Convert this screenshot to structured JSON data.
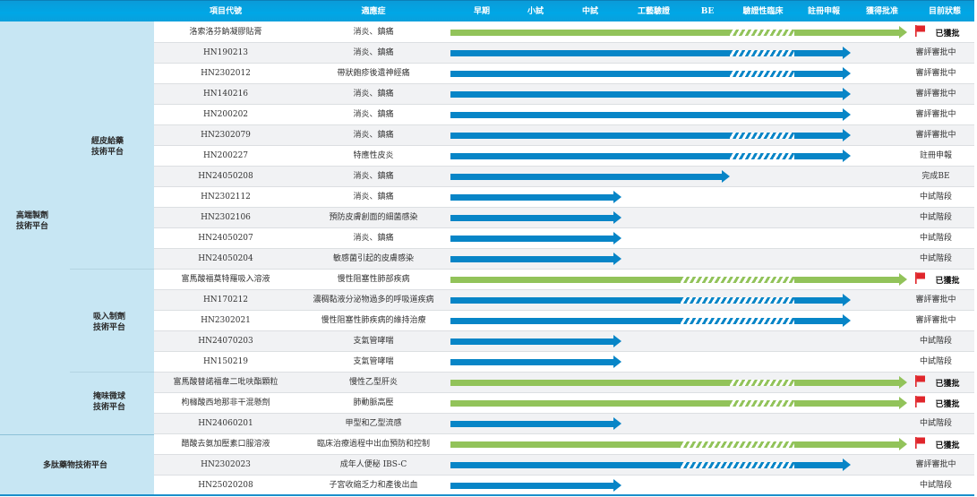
{
  "header": {
    "columns": [
      "項目代號",
      "適應症",
      "早期",
      "小試",
      "中試",
      "工藝驗證",
      "BE",
      "驗證性臨床",
      "註冊申報",
      "獲得批准",
      "目前狀態"
    ]
  },
  "colors": {
    "blue": "#0785c7",
    "green": "#92c35a",
    "header": "#00a7e6",
    "flag_red": "#e0262b",
    "left_panel": "#c7e6f3"
  },
  "platforms": [
    {
      "name": "高端製劑\n技術平台",
      "line1": "高端製劑",
      "line2": "技術平台"
    },
    {
      "name": "多肽藥物技術平台",
      "line1": "多肽藥物技術平台"
    }
  ],
  "sub_platforms": [
    {
      "line1": "經皮給藥",
      "line2": "技術平台"
    },
    {
      "line1": "吸入制劑",
      "line2": "技術平台"
    },
    {
      "line1": "掩味微球",
      "line2": "技術平台"
    }
  ],
  "rows": [
    {
      "code": "洛索洛芬鈉凝膠貼膏",
      "indication": "消炎、鎮痛",
      "status": "已獲批",
      "color": "green",
      "solid_end": 815,
      "hatch_end": 887,
      "end": 1013,
      "approved": true
    },
    {
      "code": "HN190213",
      "indication": "消炎、鎮痛",
      "status": "審評審批中",
      "color": "blue",
      "solid_end": 815,
      "hatch_end": 887,
      "end": 950,
      "approved": false
    },
    {
      "code": "HN2302012",
      "indication": "帶狀皰疹後遺神經痛",
      "status": "審評審批中",
      "color": "blue",
      "solid_end": 815,
      "hatch_end": 887,
      "end": 950,
      "approved": false
    },
    {
      "code": "HN140216",
      "indication": "消炎、鎮痛",
      "status": "審評審批中",
      "color": "blue",
      "solid_end": 950,
      "hatch_end": 950,
      "end": 950,
      "approved": false
    },
    {
      "code": "HN200202",
      "indication": "消炎、鎮痛",
      "status": "審評審批中",
      "color": "blue",
      "solid_end": 950,
      "hatch_end": 950,
      "end": 950,
      "approved": false
    },
    {
      "code": "HN2302079",
      "indication": "消炎、鎮痛",
      "status": "審評審批中",
      "color": "blue",
      "solid_end": 815,
      "hatch_end": 887,
      "end": 950,
      "approved": false
    },
    {
      "code": "HN200227",
      "indication": "特應性皮炎",
      "status": "註冊申報",
      "color": "blue",
      "solid_end": 815,
      "hatch_end": 887,
      "end": 950,
      "approved": false
    },
    {
      "code": "HN24050208",
      "indication": "消炎、鎮痛",
      "status": "完成BE",
      "color": "blue",
      "solid_end": 815,
      "hatch_end": 815,
      "end": 815,
      "approved": false
    },
    {
      "code": "HN2302112",
      "indication": "消炎、鎮痛",
      "status": "中試階段",
      "color": "blue",
      "solid_end": 694,
      "hatch_end": 694,
      "end": 694,
      "approved": false
    },
    {
      "code": "HN2302106",
      "indication": "預防皮膚創面的細菌感染",
      "status": "中試階段",
      "color": "blue",
      "solid_end": 694,
      "hatch_end": 694,
      "end": 694,
      "approved": false
    },
    {
      "code": "HN24050207",
      "indication": "消炎、鎮痛",
      "status": "中試階段",
      "color": "blue",
      "solid_end": 694,
      "hatch_end": 694,
      "end": 694,
      "approved": false
    },
    {
      "code": "HN24050204",
      "indication": "敏感菌引起的皮膚感染",
      "status": "中試階段",
      "color": "blue",
      "solid_end": 694,
      "hatch_end": 694,
      "end": 694,
      "approved": false
    },
    {
      "code": "富馬酸福莫特羅吸入溶液",
      "indication": "慢性阻塞性肺部疾病",
      "status": "已獲批",
      "color": "green",
      "solid_end": 760,
      "hatch_end": 887,
      "end": 1013,
      "approved": true
    },
    {
      "code": "HN170212",
      "indication": "濃稠黏液分泌物過多的呼吸道疾病",
      "status": "審評審批中",
      "color": "blue",
      "solid_end": 760,
      "hatch_end": 887,
      "end": 950,
      "approved": false
    },
    {
      "code": "HN2302021",
      "indication": "慢性阻塞性肺疾病的維持治療",
      "status": "審評審批中",
      "color": "blue",
      "solid_end": 760,
      "hatch_end": 887,
      "end": 950,
      "approved": false
    },
    {
      "code": "HN24070203",
      "indication": "支氣管哮喘",
      "status": "中試階段",
      "color": "blue",
      "solid_end": 694,
      "hatch_end": 694,
      "end": 694,
      "approved": false
    },
    {
      "code": "HN150219",
      "indication": "支氣管哮喘",
      "status": "中試階段",
      "color": "blue",
      "solid_end": 694,
      "hatch_end": 694,
      "end": 694,
      "approved": false
    },
    {
      "code": "富馬酸替諾福韋二吡呋酯顆粒",
      "indication": "慢性乙型肝炎",
      "status": "已獲批",
      "color": "green",
      "solid_end": 815,
      "hatch_end": 887,
      "end": 1013,
      "approved": true
    },
    {
      "code": "枸櫞酸西地那非干混懸劑",
      "indication": "肺動脈高壓",
      "status": "已獲批",
      "color": "green",
      "solid_end": 815,
      "hatch_end": 887,
      "end": 1013,
      "approved": true
    },
    {
      "code": "HN24060201",
      "indication": "甲型和乙型流感",
      "status": "中試階段",
      "color": "blue",
      "solid_end": 694,
      "hatch_end": 694,
      "end": 694,
      "approved": false
    },
    {
      "code": "醋酸去氨加壓素口服溶液",
      "indication": "臨床治療過程中出血預防和控制",
      "status": "已獲批",
      "color": "green",
      "solid_end": 760,
      "hatch_end": 887,
      "end": 1013,
      "approved": true
    },
    {
      "code": "HN2302023",
      "indication": "成年人便秘 IBS-C",
      "status": "審評審批中",
      "color": "blue",
      "solid_end": 760,
      "hatch_end": 887,
      "end": 950,
      "approved": false
    },
    {
      "code": "HN25020208",
      "indication": "子宮收縮乏力和產後出血",
      "status": "中試階段",
      "color": "blue",
      "solid_end": 694,
      "hatch_end": 694,
      "end": 694,
      "approved": false
    }
  ]
}
